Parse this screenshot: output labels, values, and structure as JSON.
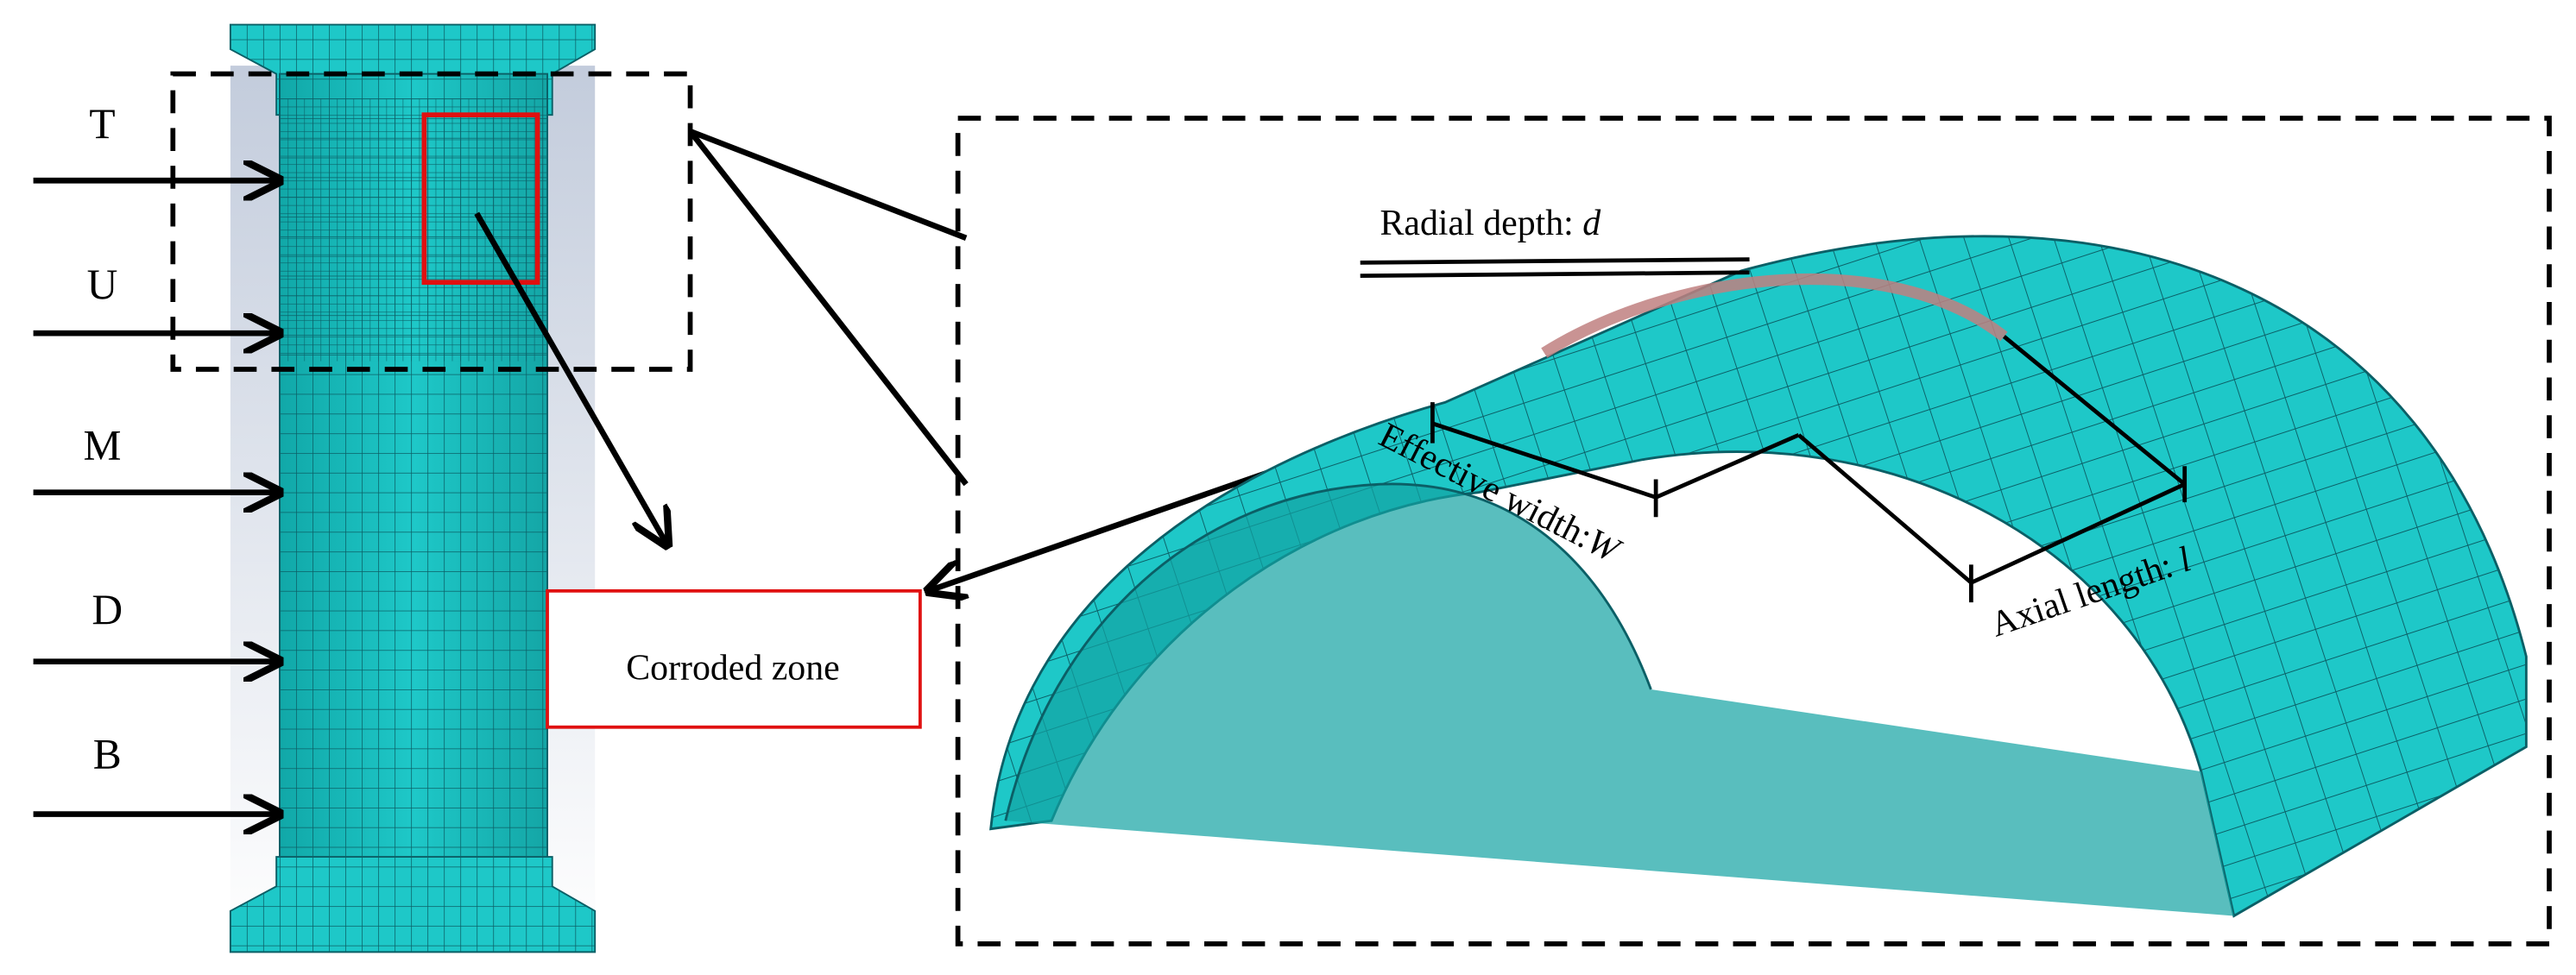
{
  "column_labels": [
    "T",
    "U",
    "M",
    "D",
    "B"
  ],
  "corroded_zone": "Corroded zone",
  "radial_depth": {
    "text": "Radial depth:",
    "symbol": "d"
  },
  "effective_width": {
    "text": "Effective width:",
    "symbol": "W"
  },
  "axial_length": {
    "text": "Axial length:",
    "symbol": "l"
  }
}
